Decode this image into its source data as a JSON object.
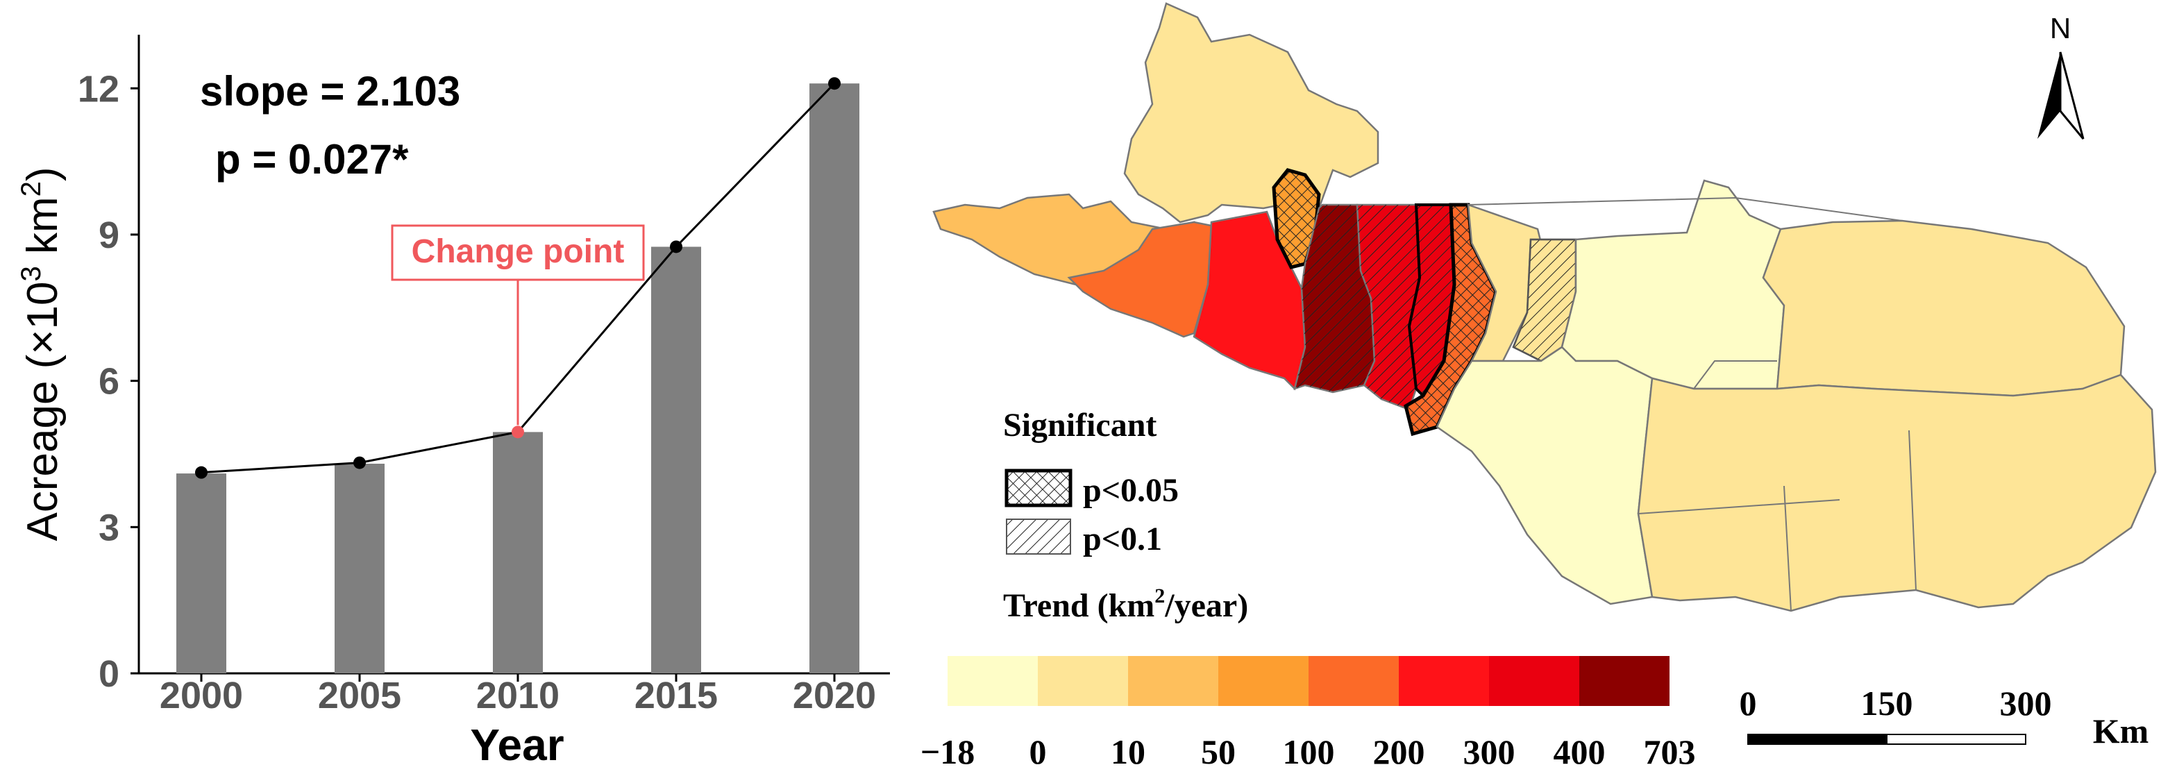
{
  "chart_data": [
    {
      "type": "bar",
      "categories": [
        "2000",
        "2005",
        "2010",
        "2015",
        "2020"
      ],
      "values": [
        4.1,
        4.3,
        4.95,
        8.75,
        12.1
      ],
      "line_values": [
        4.12,
        4.32,
        4.95,
        8.75,
        12.1
      ],
      "xlabel": "Year",
      "ylabel_main": "Acreage (×10",
      "ylabel_exp1": "3",
      "ylabel_unit": " km",
      "ylabel_exp2": "2",
      "ylabel_close": ")",
      "yticks": [
        "0",
        "3",
        "6",
        "9",
        "12"
      ],
      "ylim": [
        0,
        13.1
      ],
      "annotations": {
        "slope": "slope = 2.103",
        "p": "p = 0.027*",
        "change_point": "Change point"
      },
      "change_point_index": 2,
      "colors": {
        "bar": "#7f7f7f",
        "line": "#000000",
        "change_point": "#f0585c"
      }
    },
    {
      "type": "choropleth",
      "legend": {
        "significance_title": "Significant",
        "p05": "p<0.05",
        "p01": "p<0.1",
        "trend_title": "Trend (km",
        "trend_sup": "2",
        "trend_close": "/year)",
        "breaks": [
          "−18",
          "0",
          "10",
          "50",
          "100",
          "200",
          "300",
          "400",
          "703"
        ],
        "colors": [
          "#fefdc7",
          "#fee597",
          "#febf5c",
          "#fd9e30",
          "#fc6a28",
          "#ff1218",
          "#ea0010",
          "#8c0000"
        ]
      },
      "scalebar": {
        "ticks": [
          "0",
          "150",
          "300"
        ],
        "unit": "Km"
      },
      "north": "N"
    }
  ]
}
